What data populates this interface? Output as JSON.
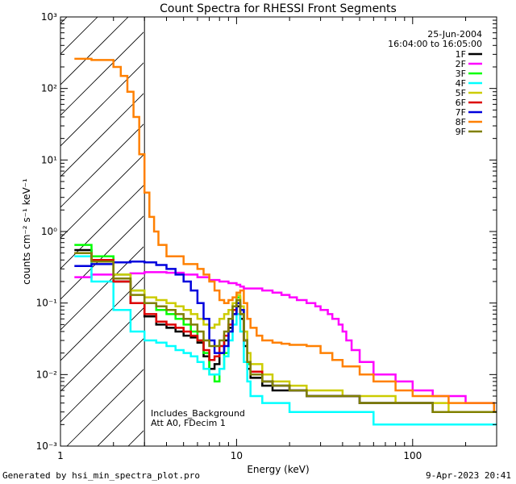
{
  "chart_data": {
    "type": "line",
    "title": "Count Spectra for RHESSI Front Segments",
    "xlabel": "Energy (keV)",
    "ylabel": "counts cm⁻² s⁻¹ keV⁻¹",
    "xscale": "log",
    "yscale": "log",
    "xlim": [
      1,
      300
    ],
    "ylim": [
      0.001,
      1000
    ],
    "x_ticks": [
      1,
      10,
      100
    ],
    "x_tick_labels": [
      "1",
      "10",
      "100"
    ],
    "y_ticks": [
      0.001,
      0.01,
      0.1,
      1,
      10,
      100,
      1000
    ],
    "y_tick_labels": [
      "10⁻³",
      "10⁻²",
      "10⁻¹",
      "10⁰",
      "10¹",
      "10²",
      "10³"
    ],
    "date": "25-Jun-2004",
    "time_range": "16:04:00 to 16:05:00",
    "shaded_region_xmax_keV": 3,
    "annotations": [
      "Includes_Background",
      "Att A0, FDecim 1"
    ],
    "legend_position": "top-right",
    "series": [
      {
        "name": "1F",
        "color": "#000000",
        "x": [
          1.2,
          1.5,
          2,
          2.5,
          3,
          3.5,
          4,
          4.5,
          5,
          5.5,
          6,
          6.5,
          7,
          7.5,
          8,
          8.5,
          9,
          9.5,
          10,
          10.5,
          11,
          11.5,
          12,
          14,
          16,
          20,
          25,
          30,
          40,
          50,
          60,
          80,
          100,
          130,
          160,
          200,
          250,
          290
        ],
        "y": [
          0.55,
          0.45,
          0.2,
          0.1,
          0.065,
          0.05,
          0.045,
          0.04,
          0.035,
          0.033,
          0.028,
          0.018,
          0.012,
          0.014,
          0.02,
          0.03,
          0.045,
          0.07,
          0.09,
          0.06,
          0.025,
          0.012,
          0.009,
          0.007,
          0.006,
          0.006,
          0.005,
          0.005,
          0.005,
          0.004,
          0.004,
          0.004,
          0.004,
          0.003,
          0.003,
          0.003,
          0.003,
          0.003
        ]
      },
      {
        "name": "2F",
        "color": "#ff00ff",
        "x": [
          1.2,
          1.5,
          2,
          2.5,
          3,
          3.5,
          4,
          5,
          6,
          7,
          8,
          9,
          10,
          10.5,
          11,
          12,
          14,
          16,
          18,
          20,
          22,
          25,
          28,
          30,
          33,
          35,
          38,
          40,
          42,
          45,
          50,
          60,
          80,
          100,
          130,
          160,
          200,
          250,
          290
        ],
        "y": [
          0.23,
          0.25,
          0.25,
          0.26,
          0.27,
          0.27,
          0.265,
          0.25,
          0.23,
          0.21,
          0.2,
          0.19,
          0.18,
          0.17,
          0.16,
          0.16,
          0.15,
          0.14,
          0.13,
          0.12,
          0.11,
          0.1,
          0.09,
          0.08,
          0.07,
          0.06,
          0.05,
          0.04,
          0.03,
          0.022,
          0.015,
          0.01,
          0.008,
          0.006,
          0.005,
          0.005,
          0.004,
          0.004,
          0.003
        ]
      },
      {
        "name": "3F",
        "color": "#00ff00",
        "x": [
          1.2,
          1.5,
          2,
          2.5,
          3,
          3.5,
          4,
          4.5,
          5,
          5.5,
          6,
          6.5,
          7,
          7.5,
          8,
          8.5,
          9,
          9.5,
          10,
          10.5,
          11,
          11.5,
          12,
          14,
          16,
          20,
          25,
          30,
          40,
          50,
          60,
          80,
          100,
          130,
          160,
          200,
          250,
          290
        ],
        "y": [
          0.65,
          0.45,
          0.25,
          0.15,
          0.1,
          0.08,
          0.07,
          0.06,
          0.05,
          0.04,
          0.03,
          0.02,
          0.01,
          0.008,
          0.012,
          0.02,
          0.04,
          0.08,
          0.12,
          0.08,
          0.03,
          0.014,
          0.01,
          0.008,
          0.007,
          0.006,
          0.005,
          0.005,
          0.005,
          0.004,
          0.004,
          0.004,
          0.004,
          0.003,
          0.003,
          0.003,
          0.003,
          0.003
        ]
      },
      {
        "name": "4F",
        "color": "#00ffff",
        "x": [
          1.2,
          1.5,
          2,
          2.5,
          3,
          3.5,
          4,
          4.5,
          5,
          5.5,
          6,
          6.5,
          7,
          7.5,
          8,
          8.5,
          9,
          9.5,
          10,
          10.5,
          11,
          11.5,
          12,
          14,
          16,
          20,
          25,
          30,
          40,
          50,
          60,
          80,
          100,
          130,
          160,
          200,
          250,
          290
        ],
        "y": [
          0.45,
          0.2,
          0.08,
          0.04,
          0.03,
          0.028,
          0.025,
          0.022,
          0.02,
          0.018,
          0.015,
          0.012,
          0.01,
          0.01,
          0.012,
          0.018,
          0.03,
          0.05,
          0.07,
          0.04,
          0.015,
          0.008,
          0.005,
          0.004,
          0.004,
          0.003,
          0.003,
          0.003,
          0.003,
          0.003,
          0.002,
          0.002,
          0.002,
          0.002,
          0.002,
          0.002,
          0.002,
          0.002
        ]
      },
      {
        "name": "5F",
        "color": "#cccc00",
        "x": [
          1.2,
          1.5,
          2,
          2.5,
          3,
          3.5,
          4,
          4.5,
          5,
          5.5,
          6,
          6.5,
          7,
          7.5,
          8,
          8.5,
          9,
          9.5,
          10,
          10.5,
          11,
          11.5,
          12,
          14,
          16,
          20,
          25,
          30,
          40,
          50,
          60,
          80,
          100,
          130,
          160,
          200,
          250,
          290
        ],
        "y": [
          0.5,
          0.4,
          0.25,
          0.15,
          0.12,
          0.11,
          0.1,
          0.09,
          0.08,
          0.07,
          0.06,
          0.05,
          0.045,
          0.05,
          0.06,
          0.07,
          0.08,
          0.1,
          0.13,
          0.09,
          0.04,
          0.02,
          0.014,
          0.01,
          0.008,
          0.007,
          0.006,
          0.006,
          0.005,
          0.005,
          0.005,
          0.004,
          0.004,
          0.004,
          0.003,
          0.003,
          0.003,
          0.003
        ]
      },
      {
        "name": "6F",
        "color": "#dd0000",
        "x": [
          1.2,
          1.5,
          2,
          2.5,
          3,
          3.5,
          4,
          4.5,
          5,
          5.5,
          6,
          6.5,
          7,
          7.5,
          8,
          8.5,
          9,
          9.5,
          10,
          10.5,
          11,
          11.5,
          12,
          14,
          16,
          20,
          25,
          30,
          40,
          50,
          60,
          80,
          100,
          130,
          160,
          200,
          250,
          290
        ],
        "y": [
          0.5,
          0.4,
          0.2,
          0.1,
          0.07,
          0.055,
          0.05,
          0.045,
          0.04,
          0.035,
          0.03,
          0.022,
          0.016,
          0.018,
          0.025,
          0.035,
          0.05,
          0.08,
          0.1,
          0.07,
          0.03,
          0.015,
          0.011,
          0.008,
          0.007,
          0.006,
          0.005,
          0.005,
          0.005,
          0.004,
          0.004,
          0.004,
          0.004,
          0.003,
          0.003,
          0.003,
          0.003,
          0.003
        ]
      },
      {
        "name": "7F",
        "color": "#0000dd",
        "x": [
          1.2,
          1.5,
          2,
          2.5,
          3,
          3.5,
          4,
          4.5,
          5,
          5.5,
          6,
          6.5,
          7,
          7.5,
          8,
          8.5,
          9,
          9.5,
          10,
          10.5,
          11,
          11.5,
          12,
          14,
          16,
          20,
          25,
          30,
          40,
          50,
          60,
          80,
          100,
          130,
          160,
          200,
          250,
          290
        ],
        "y": [
          0.33,
          0.35,
          0.37,
          0.38,
          0.37,
          0.34,
          0.3,
          0.25,
          0.2,
          0.15,
          0.1,
          0.06,
          0.03,
          0.02,
          0.02,
          0.025,
          0.04,
          0.07,
          0.1,
          0.08,
          0.03,
          0.015,
          0.01,
          0.008,
          0.007,
          0.006,
          0.005,
          0.005,
          0.005,
          0.004,
          0.004,
          0.004,
          0.004,
          0.003,
          0.003,
          0.003,
          0.003,
          0.003
        ]
      },
      {
        "name": "8F",
        "color": "#ff8000",
        "x": [
          1.2,
          1.5,
          2,
          2.2,
          2.4,
          2.6,
          2.8,
          3,
          3.2,
          3.4,
          3.6,
          4,
          5,
          6,
          6.5,
          7,
          7.5,
          8,
          8.5,
          9,
          9.5,
          10,
          10.5,
          11,
          11.5,
          12,
          13,
          14,
          16,
          18,
          20,
          25,
          30,
          35,
          40,
          50,
          60,
          80,
          100,
          130,
          160,
          200,
          250,
          290
        ],
        "y": [
          260,
          250,
          200,
          150,
          90,
          40,
          12,
          3.5,
          1.6,
          1,
          0.65,
          0.45,
          0.35,
          0.3,
          0.25,
          0.2,
          0.15,
          0.11,
          0.1,
          0.11,
          0.12,
          0.14,
          0.15,
          0.1,
          0.06,
          0.045,
          0.035,
          0.03,
          0.028,
          0.027,
          0.026,
          0.025,
          0.02,
          0.016,
          0.013,
          0.01,
          0.008,
          0.006,
          0.005,
          0.005,
          0.004,
          0.004,
          0.004,
          0.003
        ]
      },
      {
        "name": "9F",
        "color": "#808000",
        "x": [
          1.2,
          1.5,
          2,
          2.5,
          3,
          3.5,
          4,
          4.5,
          5,
          5.5,
          6,
          6.5,
          7,
          7.5,
          8,
          8.5,
          9,
          9.5,
          10,
          10.5,
          11,
          11.5,
          12,
          14,
          16,
          20,
          25,
          30,
          40,
          50,
          60,
          80,
          100,
          130,
          160,
          200,
          250,
          290
        ],
        "y": [
          0.5,
          0.38,
          0.22,
          0.13,
          0.1,
          0.09,
          0.08,
          0.07,
          0.06,
          0.05,
          0.04,
          0.03,
          0.025,
          0.025,
          0.03,
          0.04,
          0.06,
          0.09,
          0.11,
          0.07,
          0.03,
          0.015,
          0.01,
          0.008,
          0.007,
          0.006,
          0.005,
          0.005,
          0.005,
          0.004,
          0.004,
          0.004,
          0.004,
          0.003,
          0.003,
          0.003,
          0.003,
          0.003
        ]
      }
    ]
  },
  "footer": {
    "generated_by": "Generated by hsi_min_spectra_plot.pro",
    "render_date": "9-Apr-2023 20:41"
  }
}
